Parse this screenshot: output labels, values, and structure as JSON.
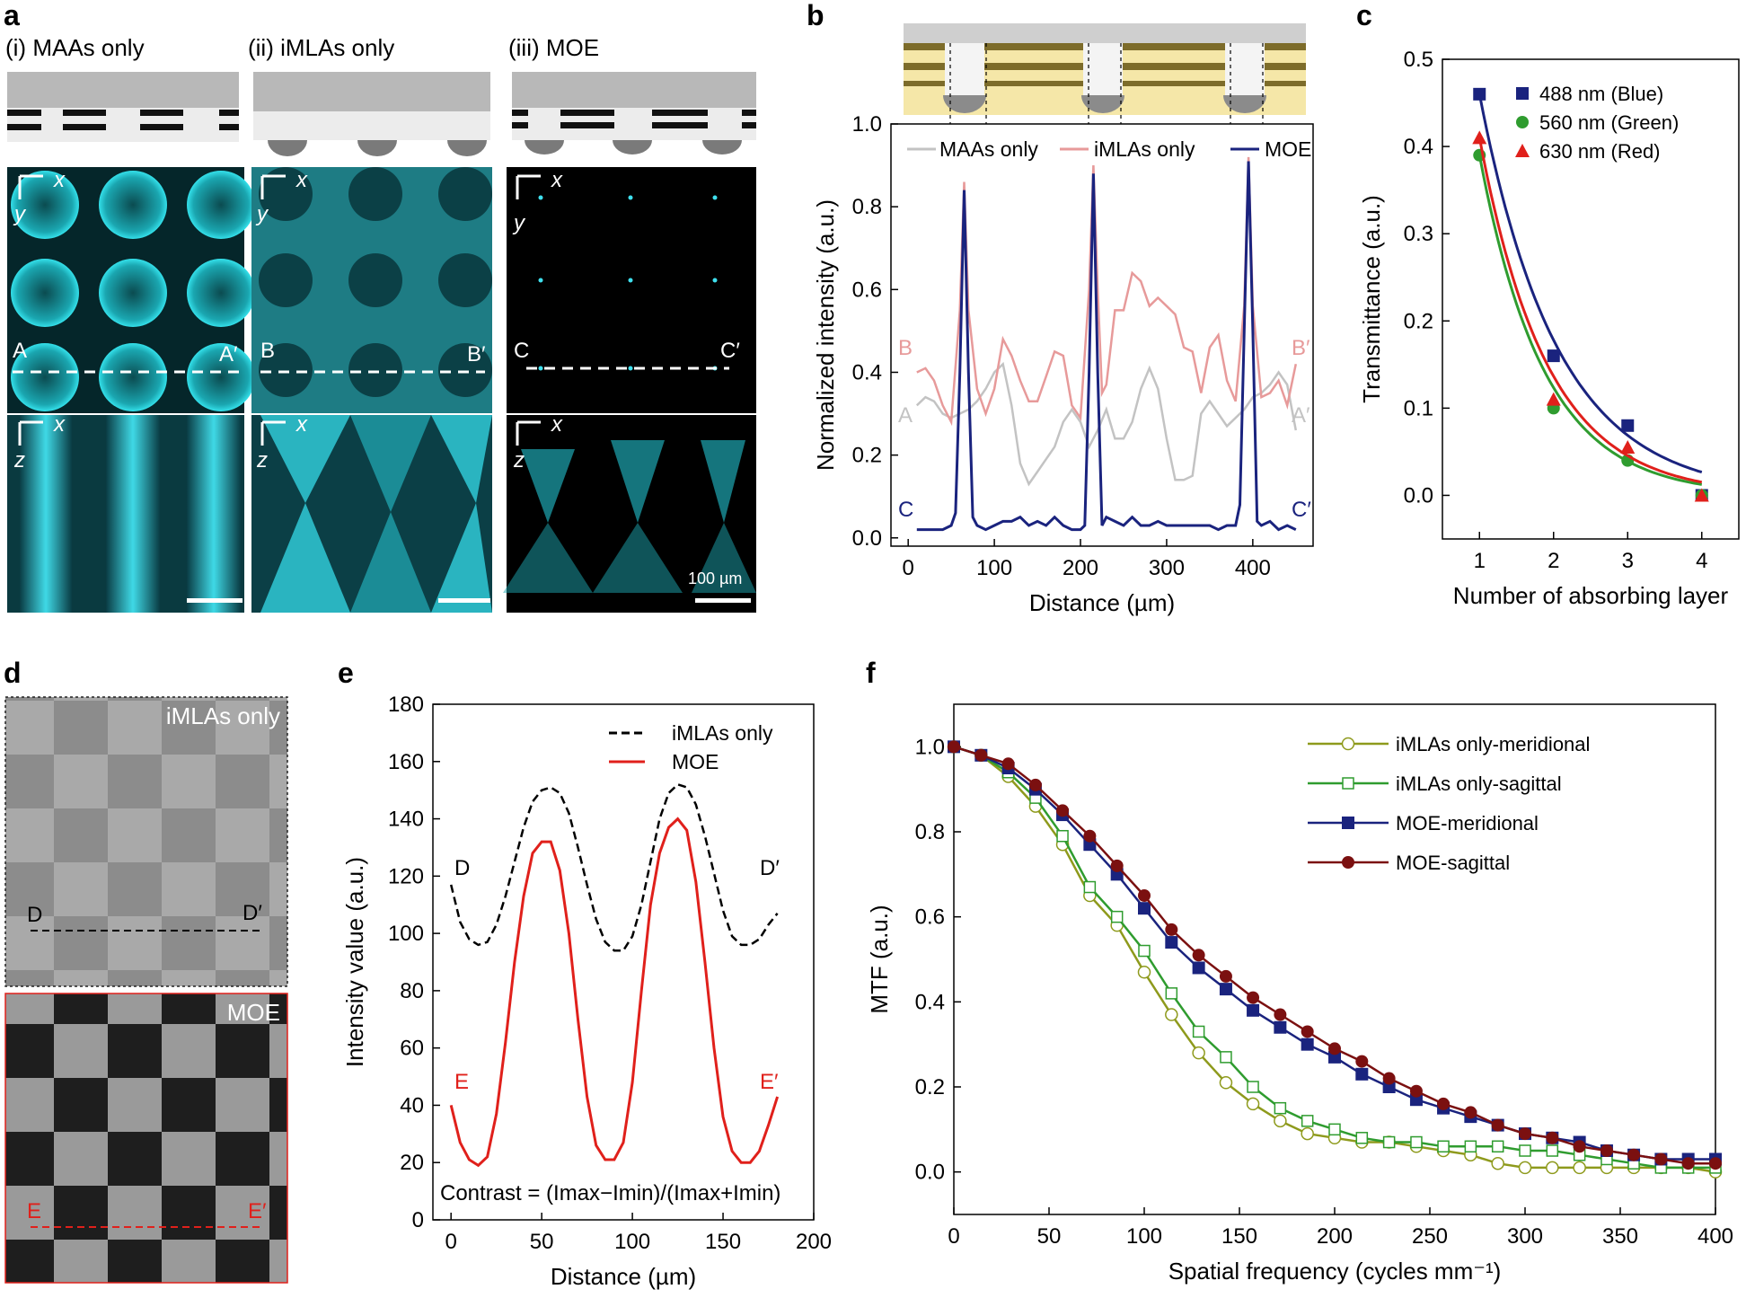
{
  "panel_labels": {
    "a": "a",
    "b": "b",
    "c": "c",
    "d": "d",
    "e": "e",
    "f": "f"
  },
  "colors": {
    "blue": "#1f1a7a",
    "pink": "#e79a9a",
    "gray": "#c3c3c3",
    "red": "#e0201b",
    "green": "#2f9c2f",
    "olive": "#8e9a1c",
    "darkred": "#7b1010",
    "cyan": "#33d6e0",
    "navy": "#1a237e"
  },
  "panel_a": {
    "columns": [
      "(i) MAAs only",
      "(ii) iMLAs only",
      "(iii) MOE"
    ],
    "x": "x",
    "y": "y",
    "z": "z",
    "line_labels": [
      [
        "A",
        "A′"
      ],
      [
        "B",
        "B′"
      ],
      [
        "C",
        "C′"
      ]
    ],
    "scale_label": "100 µm"
  },
  "chart_data": [
    {
      "id": "b",
      "type": "line",
      "xlabel": "Distance (µm)",
      "ylabel": "Normalized intensity (a.u.)",
      "xlim": [
        -20,
        470
      ],
      "ylim": [
        -0.02,
        1.0
      ],
      "xticks": [
        0,
        100,
        200,
        300,
        400
      ],
      "yticks": [
        0.0,
        0.2,
        0.4,
        0.6,
        0.8,
        1.0
      ],
      "legend": [
        "MAAs only",
        "iMLAs only",
        "MOE"
      ],
      "end_labels": [
        [
          "A",
          "A′"
        ],
        [
          "B",
          "B′"
        ],
        [
          "C",
          "C′"
        ]
      ],
      "series": [
        {
          "name": "MAAs only",
          "x": [
            10,
            20,
            30,
            40,
            50,
            60,
            70,
            80,
            90,
            100,
            110,
            120,
            130,
            140,
            150,
            160,
            170,
            180,
            190,
            200,
            210,
            220,
            230,
            240,
            250,
            260,
            270,
            280,
            290,
            300,
            310,
            320,
            330,
            340,
            350,
            360,
            370,
            380,
            390,
            400,
            410,
            420,
            430,
            440,
            450
          ],
          "y": [
            0.32,
            0.34,
            0.33,
            0.3,
            0.29,
            0.3,
            0.31,
            0.33,
            0.36,
            0.4,
            0.42,
            0.32,
            0.18,
            0.13,
            0.16,
            0.19,
            0.22,
            0.28,
            0.31,
            0.28,
            0.22,
            0.26,
            0.31,
            0.24,
            0.24,
            0.28,
            0.36,
            0.41,
            0.36,
            0.24,
            0.14,
            0.14,
            0.15,
            0.3,
            0.33,
            0.3,
            0.27,
            0.29,
            0.31,
            0.34,
            0.35,
            0.37,
            0.4,
            0.37,
            0.26
          ]
        },
        {
          "name": "iMLAs only",
          "x": [
            10,
            20,
            30,
            40,
            50,
            60,
            65,
            70,
            80,
            90,
            100,
            110,
            120,
            130,
            140,
            150,
            160,
            170,
            180,
            190,
            200,
            210,
            215,
            220,
            225,
            230,
            240,
            250,
            260,
            270,
            280,
            290,
            300,
            310,
            320,
            330,
            340,
            350,
            360,
            370,
            380,
            390,
            395,
            400,
            410,
            420,
            430,
            440,
            450
          ],
          "y": [
            0.4,
            0.41,
            0.38,
            0.32,
            0.28,
            0.55,
            0.86,
            0.55,
            0.36,
            0.3,
            0.36,
            0.48,
            0.44,
            0.38,
            0.33,
            0.33,
            0.39,
            0.45,
            0.44,
            0.32,
            0.29,
            0.6,
            0.9,
            0.6,
            0.35,
            0.37,
            0.55,
            0.55,
            0.64,
            0.62,
            0.56,
            0.58,
            0.56,
            0.54,
            0.46,
            0.45,
            0.35,
            0.46,
            0.49,
            0.38,
            0.33,
            0.56,
            0.92,
            0.56,
            0.34,
            0.35,
            0.38,
            0.32,
            0.42
          ]
        },
        {
          "name": "MOE",
          "x": [
            10,
            20,
            30,
            40,
            50,
            55,
            60,
            65,
            70,
            75,
            80,
            90,
            100,
            110,
            120,
            130,
            140,
            150,
            160,
            170,
            180,
            190,
            200,
            205,
            210,
            215,
            220,
            225,
            230,
            240,
            250,
            260,
            270,
            280,
            290,
            300,
            310,
            320,
            330,
            340,
            350,
            360,
            370,
            380,
            385,
            390,
            395,
            400,
            405,
            410,
            420,
            430,
            440,
            450
          ],
          "y": [
            0.02,
            0.02,
            0.02,
            0.02,
            0.03,
            0.06,
            0.4,
            0.84,
            0.4,
            0.05,
            0.03,
            0.02,
            0.03,
            0.04,
            0.04,
            0.05,
            0.03,
            0.04,
            0.03,
            0.05,
            0.03,
            0.02,
            0.02,
            0.03,
            0.4,
            0.88,
            0.4,
            0.03,
            0.05,
            0.04,
            0.03,
            0.05,
            0.03,
            0.03,
            0.04,
            0.03,
            0.03,
            0.03,
            0.03,
            0.03,
            0.03,
            0.02,
            0.03,
            0.03,
            0.08,
            0.5,
            0.91,
            0.5,
            0.04,
            0.03,
            0.04,
            0.02,
            0.03,
            0.02
          ]
        }
      ]
    },
    {
      "id": "c",
      "type": "scatter",
      "xlabel": "Number of absorbing layer",
      "ylabel": "Transmittance (a.u.)",
      "xlim": [
        0.5,
        4.5
      ],
      "ylim": [
        -0.05,
        0.5
      ],
      "xticks": [
        1,
        2,
        3,
        4
      ],
      "yticks": [
        0.0,
        0.1,
        0.2,
        0.3,
        0.4,
        0.5
      ],
      "series": [
        {
          "name": "488 nm (Blue)",
          "marker": "square",
          "x": [
            1,
            2,
            3,
            4
          ],
          "y": [
            0.46,
            0.16,
            0.08,
            0.0
          ]
        },
        {
          "name": "560 nm (Green)",
          "marker": "circle",
          "x": [
            1,
            2,
            3,
            4
          ],
          "y": [
            0.39,
            0.1,
            0.04,
            0.0
          ]
        },
        {
          "name": "630 nm (Red)",
          "marker": "triangle",
          "x": [
            1,
            2,
            3,
            4
          ],
          "y": [
            0.41,
            0.11,
            0.055,
            0.0
          ]
        }
      ]
    },
    {
      "id": "e",
      "type": "line",
      "xlabel": "Distance (µm)",
      "ylabel": "Intensity value (a.u.)",
      "xlim": [
        -10,
        200
      ],
      "ylim": [
        0,
        180
      ],
      "xticks": [
        0,
        50,
        100,
        150,
        200
      ],
      "yticks": [
        0,
        20,
        40,
        60,
        80,
        100,
        120,
        140,
        160,
        180
      ],
      "legend": [
        "iMLAs only",
        "MOE"
      ],
      "end_labels": [
        [
          "D",
          "D′"
        ],
        [
          "E",
          "E′"
        ]
      ],
      "annotation": "Contrast = (Imax−Imin)/(Imax+Imin)",
      "series": [
        {
          "name": "iMLAs only",
          "x": [
            0,
            5,
            10,
            15,
            20,
            25,
            30,
            35,
            40,
            45,
            50,
            55,
            60,
            65,
            70,
            75,
            80,
            85,
            90,
            95,
            100,
            105,
            110,
            115,
            120,
            125,
            130,
            135,
            140,
            145,
            150,
            155,
            160,
            165,
            170,
            175,
            180
          ],
          "y": [
            117,
            104,
            98,
            96,
            97,
            103,
            113,
            125,
            137,
            146,
            150,
            151,
            149,
            142,
            130,
            117,
            105,
            97,
            94,
            94,
            99,
            110,
            125,
            140,
            149,
            152,
            151,
            145,
            134,
            121,
            108,
            99,
            96,
            96,
            98,
            103,
            107
          ]
        },
        {
          "name": "MOE",
          "x": [
            0,
            5,
            10,
            15,
            20,
            25,
            30,
            35,
            40,
            45,
            50,
            55,
            60,
            65,
            70,
            75,
            80,
            85,
            90,
            95,
            100,
            105,
            110,
            115,
            120,
            125,
            130,
            135,
            140,
            145,
            150,
            155,
            160,
            165,
            170,
            175,
            180
          ],
          "y": [
            40,
            27,
            21,
            19,
            22,
            37,
            62,
            90,
            113,
            128,
            132,
            132,
            122,
            100,
            70,
            43,
            26,
            21,
            21,
            27,
            48,
            80,
            110,
            128,
            137,
            140,
            136,
            118,
            90,
            60,
            36,
            24,
            20,
            20,
            24,
            33,
            43
          ]
        }
      ]
    },
    {
      "id": "f",
      "type": "line",
      "xlabel": "Spatial frequency (cycles mm⁻¹)",
      "ylabel": "MTF (a.u.)",
      "xlim": [
        0,
        400
      ],
      "ylim": [
        -0.1,
        1.1
      ],
      "xticks": [
        0,
        50,
        100,
        150,
        200,
        250,
        300,
        350,
        400
      ],
      "yticks": [
        0.0,
        0.2,
        0.4,
        0.6,
        0.8,
        1.0
      ],
      "series": [
        {
          "name": "iMLAs only-meridional",
          "marker": "open-circle",
          "x": [
            0,
            14.3,
            28.6,
            42.9,
            57.1,
            71.4,
            85.7,
            100,
            114.3,
            128.6,
            142.9,
            157.1,
            171.4,
            185.7,
            200,
            214.3,
            228.6,
            242.9,
            257.1,
            271.4,
            285.7,
            300,
            314.3,
            328.6,
            342.9,
            357.1,
            371.4,
            385.7,
            400
          ],
          "y": [
            1.0,
            0.98,
            0.93,
            0.86,
            0.77,
            0.65,
            0.58,
            0.47,
            0.37,
            0.28,
            0.21,
            0.16,
            0.12,
            0.09,
            0.08,
            0.07,
            0.07,
            0.06,
            0.05,
            0.04,
            0.02,
            0.01,
            0.01,
            0.01,
            0.01,
            0.01,
            0.01,
            0.01,
            0.0
          ]
        },
        {
          "name": "iMLAs only-sagittal",
          "marker": "open-square",
          "x": [
            0,
            14.3,
            28.6,
            42.9,
            57.1,
            71.4,
            85.7,
            100,
            114.3,
            128.6,
            142.9,
            157.1,
            171.4,
            185.7,
            200,
            214.3,
            228.6,
            242.9,
            257.1,
            271.4,
            285.7,
            300,
            314.3,
            328.6,
            342.9,
            357.1,
            371.4,
            385.7,
            400
          ],
          "y": [
            1.0,
            0.98,
            0.94,
            0.88,
            0.79,
            0.67,
            0.6,
            0.52,
            0.42,
            0.33,
            0.27,
            0.2,
            0.15,
            0.12,
            0.1,
            0.08,
            0.07,
            0.07,
            0.06,
            0.06,
            0.06,
            0.05,
            0.05,
            0.04,
            0.03,
            0.02,
            0.01,
            0.01,
            0.01
          ]
        },
        {
          "name": "MOE-meridional",
          "marker": "filled-square",
          "x": [
            0,
            14.3,
            28.6,
            42.9,
            57.1,
            71.4,
            85.7,
            100,
            114.3,
            128.6,
            142.9,
            157.1,
            171.4,
            185.7,
            200,
            214.3,
            228.6,
            242.9,
            257.1,
            271.4,
            285.7,
            300,
            314.3,
            328.6,
            342.9,
            357.1,
            371.4,
            385.7,
            400
          ],
          "y": [
            1.0,
            0.98,
            0.95,
            0.9,
            0.84,
            0.77,
            0.7,
            0.62,
            0.54,
            0.48,
            0.43,
            0.38,
            0.34,
            0.3,
            0.27,
            0.23,
            0.2,
            0.17,
            0.15,
            0.13,
            0.11,
            0.09,
            0.08,
            0.07,
            0.05,
            0.04,
            0.03,
            0.03,
            0.03
          ]
        },
        {
          "name": "MOE-sagittal",
          "marker": "filled-circle",
          "x": [
            0,
            14.3,
            28.6,
            42.9,
            57.1,
            71.4,
            85.7,
            100,
            114.3,
            128.6,
            142.9,
            157.1,
            171.4,
            185.7,
            200,
            214.3,
            228.6,
            242.9,
            257.1,
            271.4,
            285.7,
            300,
            314.3,
            328.6,
            342.9,
            357.1,
            371.4,
            385.7,
            400
          ],
          "y": [
            1.0,
            0.98,
            0.96,
            0.91,
            0.85,
            0.79,
            0.72,
            0.65,
            0.57,
            0.51,
            0.46,
            0.41,
            0.37,
            0.33,
            0.29,
            0.26,
            0.22,
            0.19,
            0.16,
            0.14,
            0.11,
            0.09,
            0.08,
            0.06,
            0.05,
            0.04,
            0.03,
            0.02,
            0.02
          ]
        }
      ]
    }
  ],
  "panel_d": {
    "top_label": "iMLAs only",
    "bottom_label": "MOE",
    "line_labels": [
      [
        "D",
        "D′"
      ],
      [
        "E",
        "E′"
      ]
    ]
  }
}
